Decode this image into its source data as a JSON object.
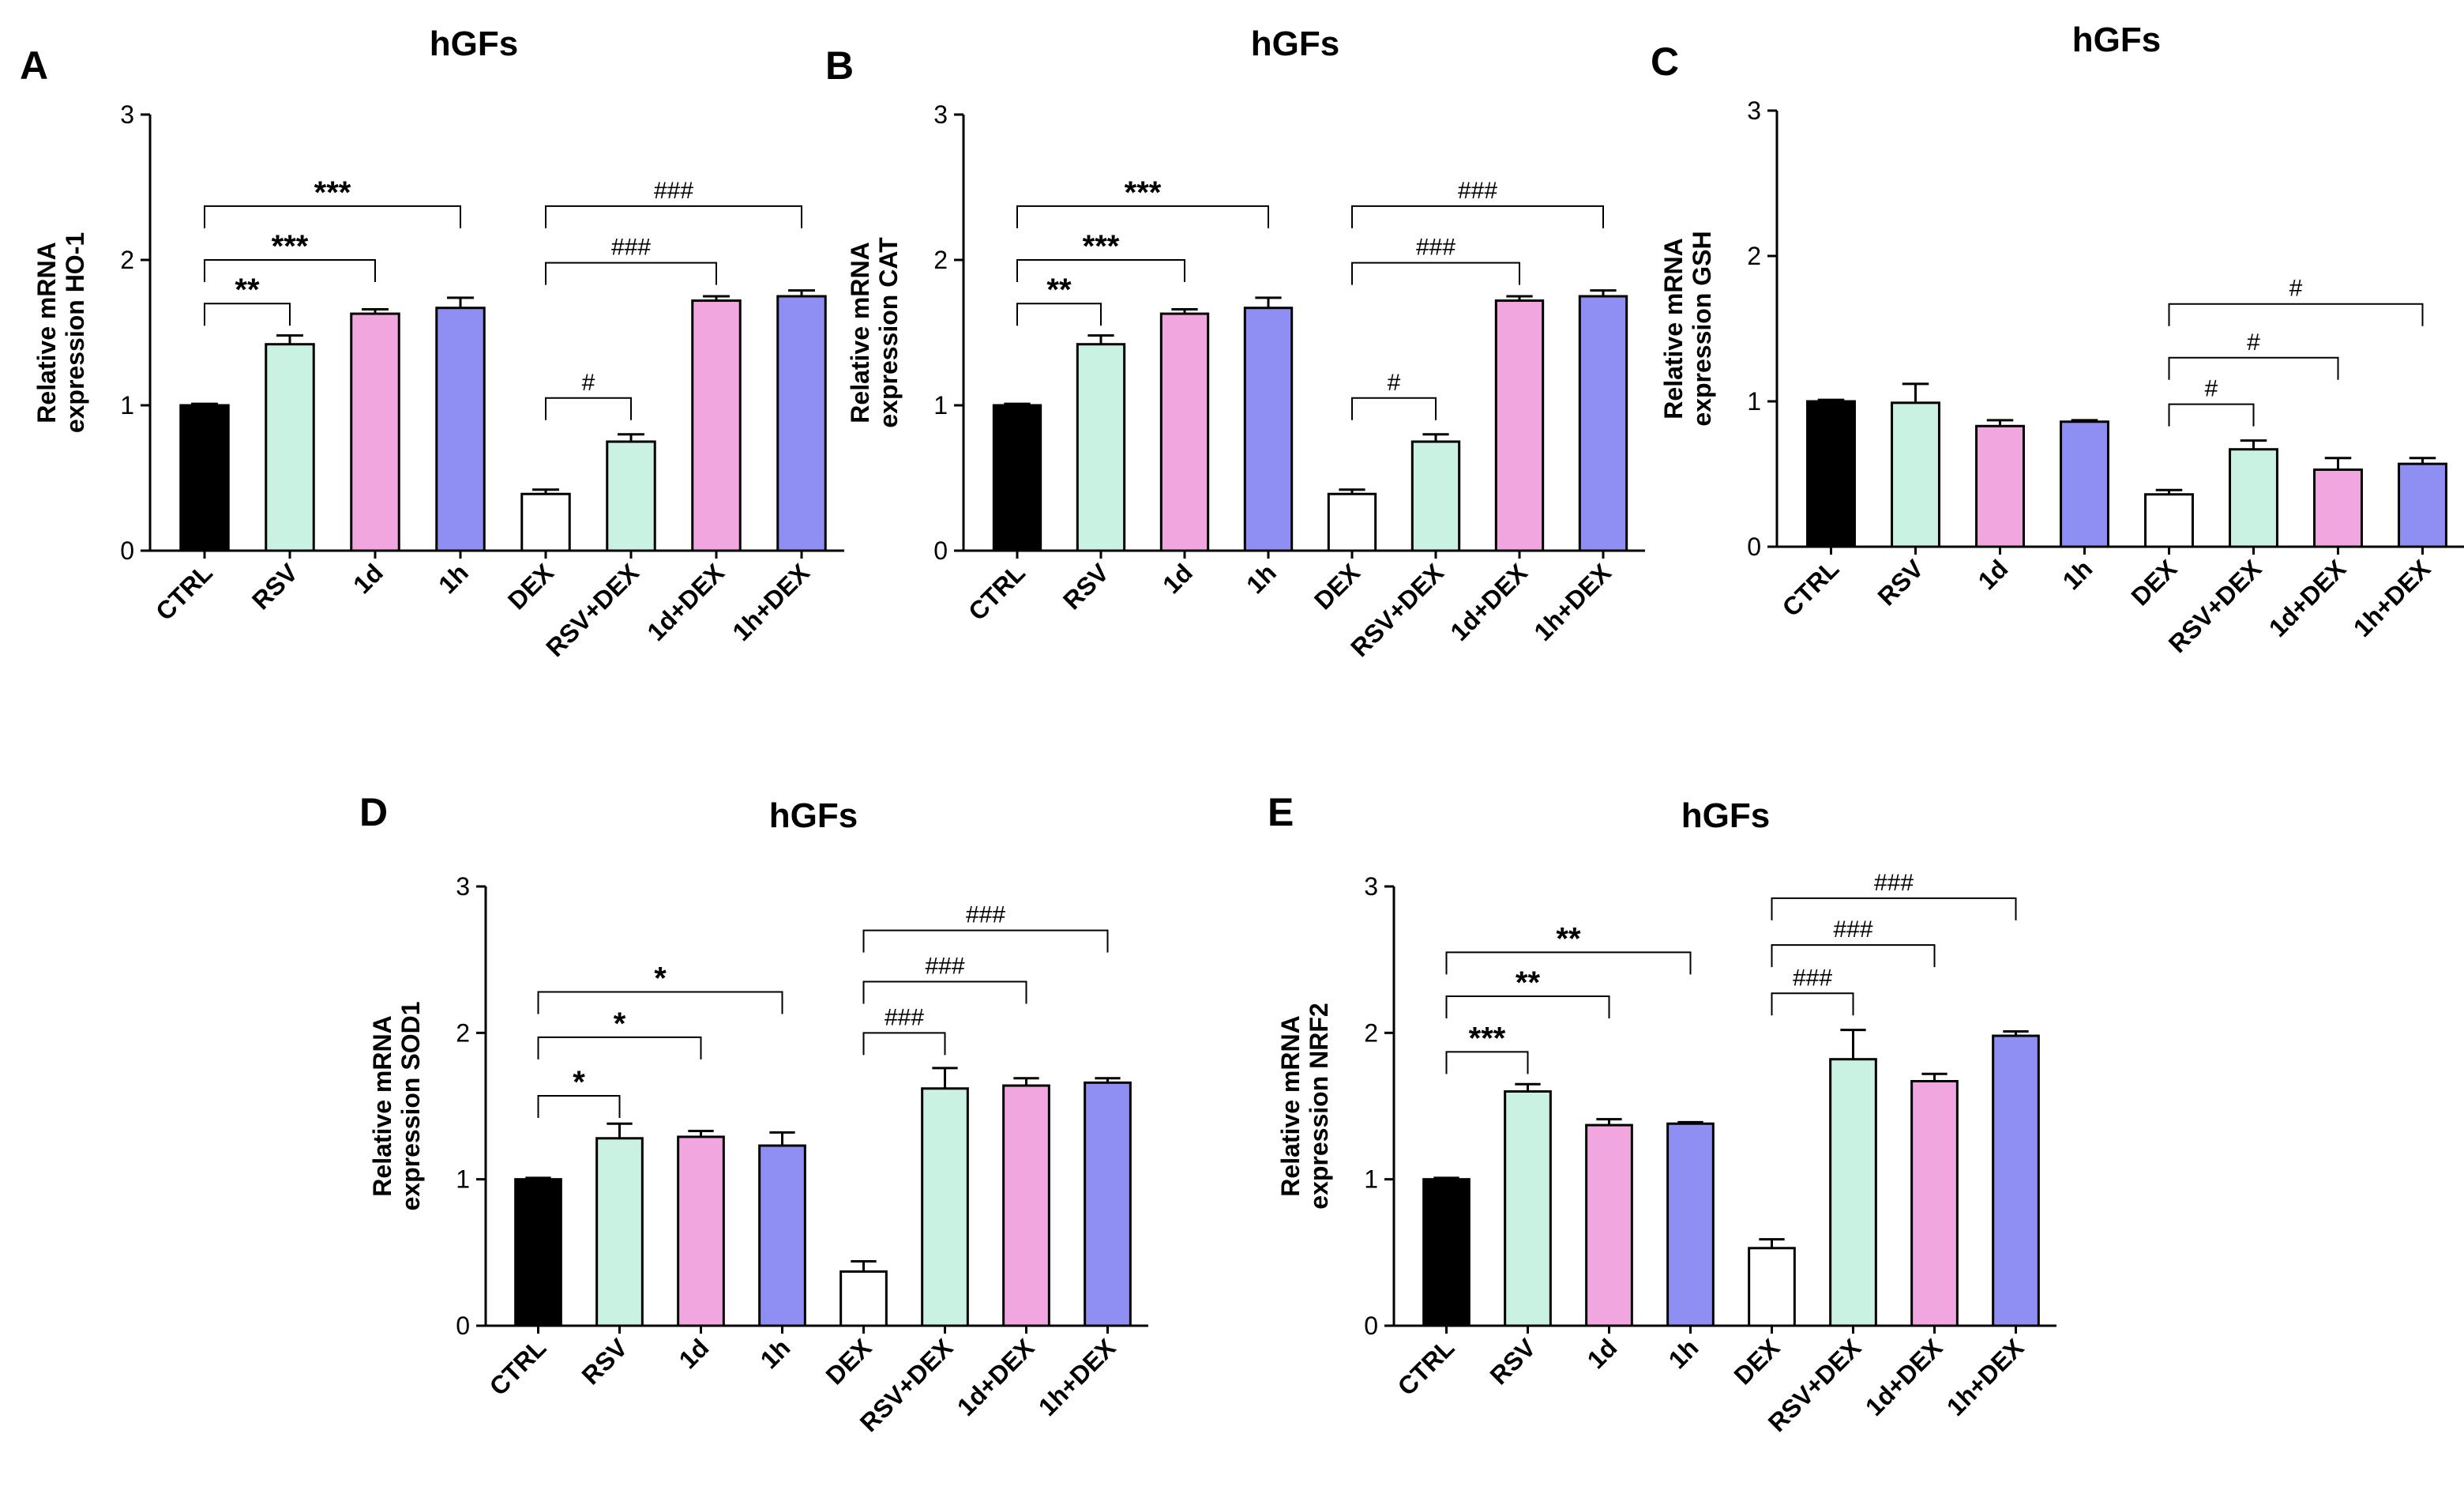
{
  "figure": {
    "colors": {
      "CTRL": "#000000",
      "RSV": "#c9f2e2",
      "1d": "#f2a6e0",
      "1h": "#8f8ff3",
      "DEX": "#ffffff",
      "RSV+DEX": "#c9f2e2",
      "1d+DEX": "#f2a6e0",
      "1h+DEX": "#8f8ff3"
    }
  },
  "chart_data": [
    {
      "panel": "A",
      "type": "bar",
      "title": "hGFs",
      "ylabel_line1": "Relative mRNA",
      "ylabel_line2": "expression HO-1",
      "ylim": [
        0,
        3
      ],
      "yticks": [
        "0",
        "1",
        "2",
        "3"
      ],
      "categories": [
        "CTRL",
        "RSV",
        "1d",
        "1h",
        "DEX",
        "RSV+DEX",
        "1d+DEX",
        "1h+DEX"
      ],
      "values": [
        1.0,
        1.42,
        1.63,
        1.67,
        0.39,
        0.75,
        1.72,
        1.75
      ],
      "errors": [
        0.01,
        0.06,
        0.03,
        0.07,
        0.03,
        0.05,
        0.03,
        0.04
      ],
      "annotations": [
        {
          "from": 0,
          "to": 1,
          "y": 1.7,
          "label": "**"
        },
        {
          "from": 0,
          "to": 2,
          "y": 2.0,
          "label": "***"
        },
        {
          "from": 0,
          "to": 3,
          "y": 2.37,
          "label": "***"
        },
        {
          "from": 4,
          "to": 5,
          "y": 1.05,
          "label": "#"
        },
        {
          "from": 4,
          "to": 6,
          "y": 1.98,
          "label": "###"
        },
        {
          "from": 4,
          "to": 7,
          "y": 2.37,
          "label": "###"
        }
      ]
    },
    {
      "panel": "B",
      "type": "bar",
      "title": "hGFs",
      "ylabel_line1": "Relative mRNA",
      "ylabel_line2": "expression CAT",
      "ylim": [
        0,
        3
      ],
      "yticks": [
        "0",
        "1",
        "2",
        "3"
      ],
      "categories": [
        "CTRL",
        "RSV",
        "1d",
        "1h",
        "DEX",
        "RSV+DEX",
        "1d+DEX",
        "1h+DEX"
      ],
      "values": [
        1.0,
        1.42,
        1.63,
        1.67,
        0.39,
        0.75,
        1.72,
        1.75
      ],
      "errors": [
        0.01,
        0.06,
        0.03,
        0.07,
        0.03,
        0.05,
        0.03,
        0.04
      ],
      "annotations": [
        {
          "from": 0,
          "to": 1,
          "y": 1.7,
          "label": "**"
        },
        {
          "from": 0,
          "to": 2,
          "y": 2.0,
          "label": "***"
        },
        {
          "from": 0,
          "to": 3,
          "y": 2.37,
          "label": "***"
        },
        {
          "from": 4,
          "to": 5,
          "y": 1.05,
          "label": "#"
        },
        {
          "from": 4,
          "to": 6,
          "y": 1.98,
          "label": "###"
        },
        {
          "from": 4,
          "to": 7,
          "y": 2.37,
          "label": "###"
        }
      ]
    },
    {
      "panel": "C",
      "type": "bar",
      "title": "hGFs",
      "ylabel_line1": "Relative mRNA",
      "ylabel_line2": "expression GSH",
      "ylim": [
        0,
        3
      ],
      "yticks": [
        "0",
        "1",
        "2",
        "3"
      ],
      "categories": [
        "CTRL",
        "RSV",
        "1d",
        "1h",
        "DEX",
        "RSV+DEX",
        "1d+DEX",
        "1h+DEX"
      ],
      "values": [
        1.0,
        0.99,
        0.83,
        0.86,
        0.36,
        0.67,
        0.53,
        0.57
      ],
      "errors": [
        0.01,
        0.13,
        0.04,
        0.01,
        0.03,
        0.06,
        0.08,
        0.04
      ],
      "annotations": [
        {
          "from": 4,
          "to": 5,
          "y": 0.98,
          "label": "#"
        },
        {
          "from": 4,
          "to": 6,
          "y": 1.3,
          "label": "#"
        },
        {
          "from": 4,
          "to": 7,
          "y": 1.67,
          "label": "#"
        }
      ]
    },
    {
      "panel": "D",
      "type": "bar",
      "title": "hGFs",
      "ylabel_line1": "Relative mRNA",
      "ylabel_line2": "expression SOD1",
      "ylim": [
        0,
        3
      ],
      "yticks": [
        "0",
        "1",
        "2",
        "3"
      ],
      "categories": [
        "CTRL",
        "RSV",
        "1d",
        "1h",
        "DEX",
        "RSV+DEX",
        "1d+DEX",
        "1h+DEX"
      ],
      "values": [
        1.0,
        1.28,
        1.29,
        1.23,
        0.37,
        1.62,
        1.64,
        1.66
      ],
      "errors": [
        0.01,
        0.1,
        0.04,
        0.09,
        0.07,
        0.14,
        0.05,
        0.03
      ],
      "annotations": [
        {
          "from": 0,
          "to": 1,
          "y": 1.57,
          "label": "*"
        },
        {
          "from": 0,
          "to": 2,
          "y": 1.97,
          "label": "*"
        },
        {
          "from": 0,
          "to": 3,
          "y": 2.28,
          "label": "*"
        },
        {
          "from": 4,
          "to": 5,
          "y": 2.0,
          "label": "###"
        },
        {
          "from": 4,
          "to": 6,
          "y": 2.35,
          "label": "###"
        },
        {
          "from": 4,
          "to": 7,
          "y": 2.7,
          "label": "###"
        }
      ]
    },
    {
      "panel": "E",
      "type": "bar",
      "title": "hGFs",
      "ylabel_line1": "Relative mRNA",
      "ylabel_line2": "expression NRF2",
      "ylim": [
        0,
        3
      ],
      "yticks": [
        "0",
        "1",
        "2",
        "3"
      ],
      "categories": [
        "CTRL",
        "RSV",
        "1d",
        "1h",
        "DEX",
        "RSV+DEX",
        "1d+DEX",
        "1h+DEX"
      ],
      "values": [
        1.0,
        1.6,
        1.37,
        1.38,
        0.53,
        1.82,
        1.67,
        1.98
      ],
      "errors": [
        0.01,
        0.05,
        0.04,
        0.01,
        0.06,
        0.2,
        0.05,
        0.03
      ],
      "annotations": [
        {
          "from": 0,
          "to": 1,
          "y": 1.87,
          "label": "***"
        },
        {
          "from": 0,
          "to": 2,
          "y": 2.25,
          "label": "**"
        },
        {
          "from": 0,
          "to": 3,
          "y": 2.55,
          "label": "**"
        },
        {
          "from": 4,
          "to": 5,
          "y": 2.27,
          "label": "###"
        },
        {
          "from": 4,
          "to": 6,
          "y": 2.6,
          "label": "###"
        },
        {
          "from": 4,
          "to": 7,
          "y": 2.92,
          "label": "###"
        }
      ]
    }
  ]
}
